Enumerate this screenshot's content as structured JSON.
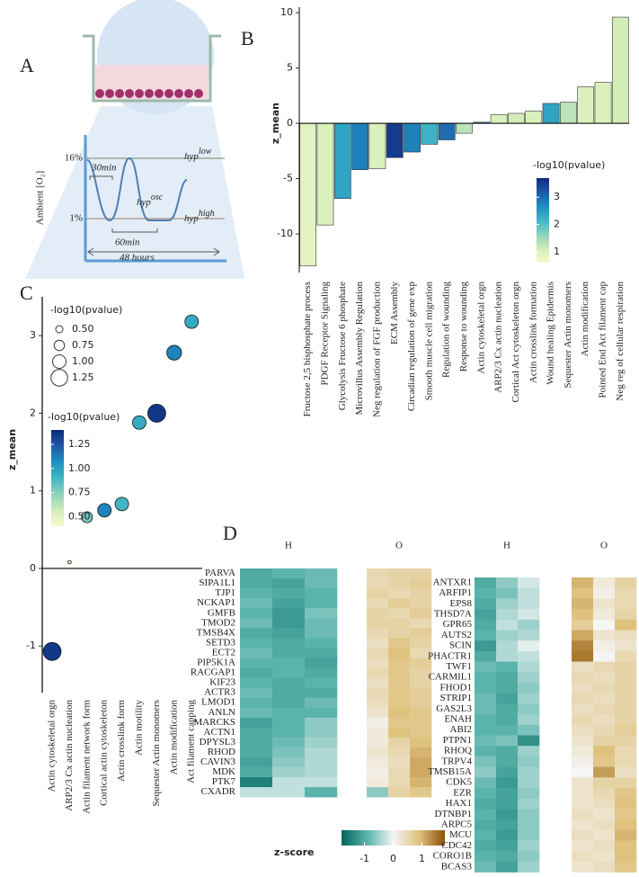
{
  "panel_labels": [
    "A",
    "B",
    "C",
    "D"
  ],
  "diagram": {
    "ylabel": "Ambient [O₂]",
    "levels": [
      "16%",
      "1%"
    ],
    "durations": [
      "30min",
      "60min",
      "48 hours"
    ],
    "curves": [
      {
        "text": "hyp",
        "sup": "low"
      },
      {
        "text": "hyp",
        "sup": "osc"
      },
      {
        "text": "hyp",
        "sup": "high"
      }
    ]
  },
  "chart_data": [
    {
      "type": "bar",
      "ylabel": "z_mean",
      "categories": [
        "Fructose 2,5 bisphosphate process",
        "PDGF Receptor Signaling",
        "Glycolysis Fructose 6 phosphate",
        "Microvillus Assembly Regulation",
        "Neg regulation of FGF production",
        "ECM Assembly",
        "Circadian regulation of gene exp",
        "Smooth muscle cell migration",
        "Regulation of wounding",
        "Response to wounding",
        "Actin cytoskeletal orgn",
        "ARP2/3 Cx actin nucleation",
        "Cortical Act cytoskeleton orgn",
        "Actin crosslink formation",
        "Wound healing Epidermis",
        "Sequester Actin monomers",
        "Actin modification",
        "Pointed End Act filament cap",
        "Neg reg of cellular respiration"
      ],
      "values": [
        -12.9,
        -9.2,
        -6.8,
        -4.2,
        -4.1,
        -3.1,
        -2.6,
        -1.9,
        -1.5,
        -0.9,
        0.1,
        0.8,
        0.9,
        1.1,
        1.8,
        1.9,
        3.3,
        3.7,
        9.6
      ],
      "color_values": [
        0.9,
        1.0,
        2.4,
        2.8,
        1.0,
        3.5,
        2.8,
        2.2,
        3.0,
        1.3,
        2.5,
        1.0,
        1.1,
        1.0,
        2.4,
        1.3,
        1.0,
        1.0,
        1.1
      ],
      "colorscale": [
        "#f6fbcc",
        "#d2edb8",
        "#8fd2bb",
        "#41b6c4",
        "#1d8fc0",
        "#2159a6",
        "#0c2a7e"
      ],
      "clim": [
        0.6,
        3.7
      ],
      "colorbar_title": "-log10(pvalue)",
      "cticks": [
        1,
        2,
        3
      ],
      "ylim": [
        -13.5,
        10.5
      ],
      "yticks": [
        -10,
        -5,
        0,
        5,
        10
      ]
    },
    {
      "type": "bubble",
      "ylabel": "z_mean",
      "categories": [
        "Actin cytoskeletal orgn",
        "ARP2/3 Cx actin nucleation",
        "Actin filament network form",
        "Cortical actin cytoskeleton",
        "Actin crosslink form",
        "Actin motility",
        "Sequester Actin monomers",
        "Actin modification",
        "Act filament capping"
      ],
      "values": [
        -1.07,
        0.08,
        0.66,
        0.75,
        0.83,
        1.88,
        2.0,
        2.78,
        3.18
      ],
      "sizes": [
        1.35,
        0.2,
        0.8,
        1.0,
        1.0,
        1.0,
        1.35,
        1.1,
        1.0
      ],
      "color_values": [
        1.35,
        0.5,
        0.8,
        1.1,
        0.9,
        0.95,
        1.35,
        1.1,
        0.95
      ],
      "colorscale": [
        "#f6fbcc",
        "#d2edb8",
        "#8fd2bb",
        "#41b6c4",
        "#1d8fc0",
        "#2159a6",
        "#0c2a7e"
      ],
      "clim": [
        0.4,
        1.4
      ],
      "size_legend_title": "-log10(pvalue)",
      "size_ticks": [
        {
          "value": 0.5,
          "label": "0.50"
        },
        {
          "value": 0.75,
          "label": "0.75"
        },
        {
          "value": 1.0,
          "label": "1.00"
        },
        {
          "value": 1.25,
          "label": "1.25"
        }
      ],
      "colorbar_title": "-log10(pvalue)",
      "cticks": [
        {
          "value": 1.25,
          "label": "1.25"
        },
        {
          "value": 1.0,
          "label": "1.00"
        },
        {
          "value": 0.75,
          "label": "0.75"
        },
        {
          "value": 0.5,
          "label": "0.50"
        }
      ],
      "ylim": [
        -1.6,
        3.5
      ],
      "yticks": [
        -1,
        0,
        1,
        2,
        3
      ]
    },
    {
      "type": "heatmap",
      "groups": [
        "H",
        "O"
      ],
      "rows": [
        "PARVA",
        "SIPA1L1",
        "TJP1",
        "NCKAP1",
        "GMFB",
        "TMOD2",
        "TMSB4X",
        "SETD3",
        "ECT2",
        "PIP5K1A",
        "RACGAP1",
        "KIF23",
        "ACTR3",
        "LMOD1",
        "ANLN",
        "MARCKS",
        "ACTN1",
        "DPYSL3",
        "RHOD",
        "CAVIN3",
        "MDK",
        "PTK7",
        "CXADR"
      ],
      "values": [
        [
          -1.0,
          -0.9,
          -0.8,
          0.5,
          0.6,
          0.6
        ],
        [
          -1.0,
          -1.1,
          -0.8,
          0.5,
          0.6,
          0.7
        ],
        [
          -0.9,
          -1.0,
          -0.9,
          0.6,
          0.5,
          0.6
        ],
        [
          -0.8,
          -1.1,
          -0.9,
          0.5,
          0.7,
          0.6
        ],
        [
          -0.9,
          -1.2,
          -0.7,
          0.6,
          0.5,
          0.7
        ],
        [
          -0.8,
          -1.2,
          -0.8,
          0.6,
          0.6,
          0.5
        ],
        [
          -1.0,
          -1.1,
          -0.8,
          0.5,
          0.6,
          0.7
        ],
        [
          -0.9,
          -1.0,
          -0.9,
          0.4,
          0.8,
          0.6
        ],
        [
          -0.8,
          -1.0,
          -1.0,
          0.5,
          0.9,
          0.5
        ],
        [
          -0.9,
          -0.9,
          -1.1,
          0.4,
          0.8,
          0.7
        ],
        [
          -1.0,
          -0.9,
          -1.0,
          0.5,
          0.8,
          0.6
        ],
        [
          -0.9,
          -1.0,
          -0.9,
          0.4,
          0.8,
          0.6
        ],
        [
          -0.8,
          -1.0,
          -1.0,
          0.5,
          0.8,
          0.7
        ],
        [
          -0.9,
          -1.0,
          -0.8,
          0.4,
          0.8,
          0.7
        ],
        [
          -0.8,
          -0.9,
          -0.9,
          0.3,
          0.9,
          0.8
        ],
        [
          -1.1,
          -0.9,
          -0.6,
          0.1,
          0.8,
          0.8
        ],
        [
          -1.0,
          -0.9,
          -0.6,
          0.2,
          0.9,
          0.8
        ],
        [
          -1.0,
          -0.8,
          -0.5,
          0.2,
          0.6,
          0.9
        ],
        [
          -1.0,
          -0.7,
          -0.4,
          0.3,
          0.5,
          1.0
        ],
        [
          -1.1,
          -0.6,
          -0.4,
          0.2,
          0.4,
          1.1
        ],
        [
          -1.0,
          -0.5,
          -0.4,
          0.1,
          0.5,
          1.1
        ],
        [
          -1.5,
          -0.3,
          -0.3,
          0.2,
          0.5,
          1.0
        ],
        [
          -0.3,
          -0.3,
          -0.9,
          -0.6,
          0.6,
          0.8
        ]
      ],
      "colorscale": [
        "#01665e",
        "#5ab4ac",
        "#f5f5f5",
        "#dfc27d",
        "#8c510a"
      ],
      "zlim": [
        -1.8,
        1.8
      ],
      "colorbar_title": "z-score",
      "zticks": [
        -1,
        0,
        1
      ]
    },
    {
      "type": "heatmap",
      "groups": [
        "H",
        "O"
      ],
      "rows": [
        "ANTXR1",
        "ARFIP1",
        "EPS8",
        "THSD7A",
        "GPR65",
        "AUTS2",
        "SCIN",
        "PHACTR1",
        "TWF1",
        "CARMIL1",
        "FHOD1",
        "STRIP1",
        "GAS2L3",
        "ENAH",
        "ABI2",
        "PTPN1",
        "RHOQ",
        "TRPV4",
        "TMSB15A",
        "CDK5",
        "EZR",
        "HAX1",
        "DTNBP1",
        "ARPC5",
        "MCU",
        "CDC42",
        "CORO1B",
        "BCAS3"
      ],
      "values": [
        [
          -1.0,
          -0.6,
          -0.2,
          1.0,
          0.2,
          0.6
        ],
        [
          -0.9,
          -0.7,
          -0.3,
          0.9,
          0.1,
          0.5
        ],
        [
          -1.0,
          -0.5,
          -0.3,
          1.0,
          0.3,
          0.5
        ],
        [
          -1.1,
          -0.4,
          -0.2,
          0.9,
          0.2,
          0.6
        ],
        [
          -1.0,
          -0.3,
          -0.5,
          0.7,
          0.0,
          0.9
        ],
        [
          -0.9,
          -0.5,
          -0.4,
          1.1,
          0.3,
          0.4
        ],
        [
          -1.2,
          -0.4,
          -0.1,
          1.4,
          0.1,
          0.3
        ],
        [
          -1.0,
          -0.4,
          -0.3,
          1.5,
          0.0,
          0.5
        ],
        [
          -0.8,
          -0.9,
          -0.4,
          0.4,
          0.5,
          0.6
        ],
        [
          -0.9,
          -1.0,
          -0.5,
          0.5,
          0.4,
          0.6
        ],
        [
          -0.9,
          -1.0,
          -0.6,
          0.4,
          0.5,
          0.6
        ],
        [
          -0.8,
          -1.1,
          -0.5,
          0.5,
          0.4,
          0.6
        ],
        [
          -0.8,
          -1.0,
          -0.6,
          0.4,
          0.5,
          0.6
        ],
        [
          -0.9,
          -1.0,
          -0.5,
          0.5,
          0.4,
          0.6
        ],
        [
          -0.9,
          -0.9,
          -0.7,
          0.4,
          0.5,
          0.7
        ],
        [
          -0.8,
          -0.7,
          -1.3,
          0.3,
          0.6,
          0.6
        ],
        [
          -0.9,
          -1.0,
          -0.5,
          0.2,
          0.9,
          0.5
        ],
        [
          -0.7,
          -1.0,
          -0.6,
          0.1,
          0.8,
          0.5
        ],
        [
          -0.6,
          -1.1,
          -0.5,
          0.0,
          1.2,
          0.4
        ],
        [
          -0.8,
          -1.2,
          -0.5,
          0.3,
          0.6,
          0.6
        ],
        [
          -0.9,
          -1.1,
          -0.6,
          0.3,
          0.5,
          0.8
        ],
        [
          -1.0,
          -1.1,
          -0.5,
          0.3,
          0.4,
          0.9
        ],
        [
          -0.9,
          -1.2,
          -0.6,
          0.4,
          0.3,
          0.8
        ],
        [
          -1.0,
          -1.1,
          -0.6,
          0.3,
          0.4,
          0.9
        ],
        [
          -0.9,
          -1.2,
          -0.6,
          0.4,
          0.3,
          1.0
        ],
        [
          -1.0,
          -1.1,
          -0.5,
          0.3,
          0.4,
          0.9
        ],
        [
          -0.9,
          -1.0,
          -0.6,
          0.4,
          0.3,
          0.9
        ],
        [
          -0.8,
          -1.1,
          -0.5,
          0.3,
          0.4,
          0.8
        ]
      ],
      "colorscale": [
        "#01665e",
        "#5ab4ac",
        "#f5f5f5",
        "#dfc27d",
        "#8c510a"
      ],
      "zlim": [
        -1.8,
        1.8
      ]
    }
  ]
}
